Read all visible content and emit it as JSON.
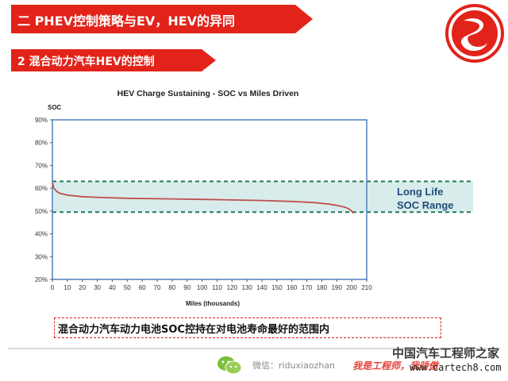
{
  "header": {
    "title": "二 PHEV控制策略与EV，HEV的异同"
  },
  "subheader": {
    "title": "2 混合动力汽车HEV的控制"
  },
  "chart_data": {
    "type": "line",
    "title": "HEV Charge Sustaining - SOC vs Miles Driven",
    "xlabel": "Miles (thousands)",
    "ylabel": "SOC",
    "xlim": [
      0,
      210
    ],
    "ylim": [
      20,
      90
    ],
    "x_ticks": [
      "0",
      "10",
      "20",
      "30",
      "40",
      "50",
      "60",
      "70",
      "80",
      "90",
      "100",
      "110",
      "120",
      "130",
      "140",
      "150",
      "160",
      "170",
      "180",
      "190",
      "200",
      "210"
    ],
    "y_ticks": [
      "20%",
      "30%",
      "40%",
      "50%",
      "60%",
      "70%",
      "80%",
      "90%"
    ],
    "grid": false,
    "series": [
      {
        "x": [
          0,
          1,
          3,
          5,
          10,
          20,
          30,
          50,
          80,
          110,
          140,
          160,
          175,
          185,
          190,
          195,
          198,
          200,
          201
        ],
        "y": [
          62.5,
          60,
          58.5,
          57.8,
          57,
          56.3,
          56,
          55.6,
          55.3,
          55,
          54.6,
          54.2,
          53.7,
          53,
          52.5,
          51.8,
          51,
          50,
          49
        ]
      }
    ],
    "band": {
      "y_low": 49.5,
      "y_high": 63,
      "label_line1": "Long Life",
      "label_line2": "SOC Range"
    },
    "colors": {
      "line": "#c0504d",
      "band_fill": "#d9ecec",
      "band_border": "#1f7a5a",
      "band_text": "#1f4e79",
      "axis_frame": "#4f81bd"
    }
  },
  "caption": {
    "text": "混合动力汽车动力电池SOC控持在对电池寿命最好的范围内"
  },
  "footer": {
    "wechat_text": "微信：riduxiaozhan",
    "slogan": "我是工程师，我骄傲",
    "watermark_cn": "中国汽车工程师之家",
    "watermark_url": "www.cartech8.com"
  }
}
